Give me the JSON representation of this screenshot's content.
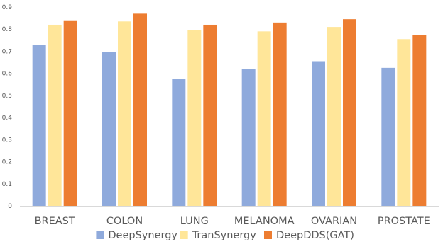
{
  "chart_data": {
    "type": "bar",
    "title": "",
    "xlabel": "",
    "ylabel": "",
    "ylim": [
      0,
      0.9
    ],
    "yticks": [
      "0",
      "0.1",
      "0.2",
      "0.3",
      "0.4",
      "0.5",
      "0.6",
      "0.7",
      "0.8",
      "0.9"
    ],
    "grid": false,
    "legend_position": "bottom",
    "categories": [
      "BREAST",
      "COLON",
      "LUNG",
      "MELANOMA",
      "OVARIAN",
      "PROSTATE"
    ],
    "series": [
      {
        "name": "DeepSynergy",
        "color": "#8FAADC",
        "values": [
          0.73,
          0.695,
          0.575,
          0.62,
          0.655,
          0.625
        ]
      },
      {
        "name": "TranSynergy",
        "color": "#FFE699",
        "values": [
          0.82,
          0.835,
          0.795,
          0.79,
          0.81,
          0.755
        ]
      },
      {
        "name": "DeepDDS(GAT)",
        "color": "#ED7D31",
        "values": [
          0.84,
          0.87,
          0.82,
          0.83,
          0.845,
          0.775
        ]
      }
    ]
  }
}
